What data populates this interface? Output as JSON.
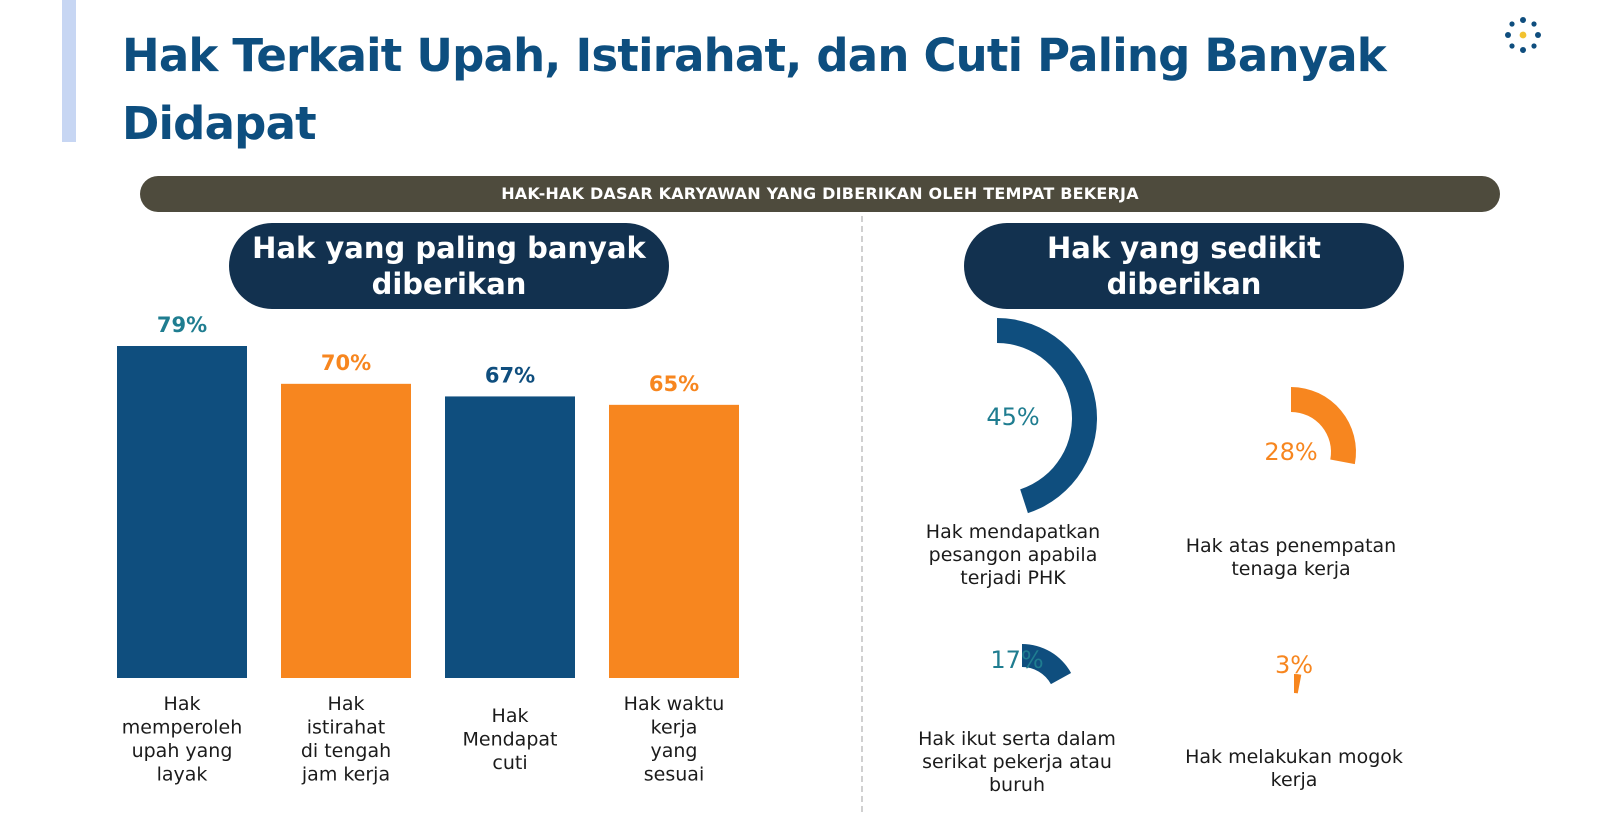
{
  "title": "Hak Terkait Upah, Istirahat, dan Cuti Paling Banyak Didapat",
  "banner": "HAK-HAK DASAR KARYAWAN YANG DIBERIKAN OLEH  TEMPAT BEKERJA",
  "left_header": "Hak yang paling banyak diberikan",
  "right_header": "Hak yang sedikit diberikan",
  "colors": {
    "blue": "#0f4e7e",
    "orange": "#f7861f",
    "teal": "#1f7d90",
    "title": "#0d4e7f",
    "banner": "#4e4b3d",
    "pill": "#12314f"
  },
  "chart_data": [
    {
      "type": "bar",
      "title": "Hak yang paling banyak diberikan",
      "categories": [
        [
          "Hak",
          "memperoleh",
          "upah yang",
          "layak"
        ],
        [
          "Hak",
          "istirahat",
          "di tengah",
          "jam kerja"
        ],
        [
          "Hak",
          "Mendapat",
          "cuti"
        ],
        [
          "Hak waktu",
          "kerja",
          "yang",
          "sesuai"
        ]
      ],
      "values": [
        79,
        70,
        67,
        65
      ],
      "value_labels": [
        "79%",
        "70%",
        "67%",
        "65%"
      ],
      "bar_colors": [
        "blue",
        "orange",
        "blue",
        "orange"
      ],
      "label_colors": [
        "teal",
        "orange",
        "blue",
        "orange"
      ],
      "ylim": [
        0,
        100
      ]
    },
    {
      "type": "pie",
      "title": "Hak yang sedikit diberikan",
      "items": [
        {
          "label": [
            "Hak mendapatkan",
            "pesangon apabila",
            "terjadi PHK"
          ],
          "value": 45,
          "value_label": "45%",
          "color": "blue",
          "label_color": "teal"
        },
        {
          "label": [
            "Hak atas penempatan",
            "tenaga kerja"
          ],
          "value": 28,
          "value_label": "28%",
          "color": "orange",
          "label_color": "orange"
        },
        {
          "label": [
            "Hak ikut serta dalam",
            "serikat pekerja atau",
            "buruh"
          ],
          "value": 17,
          "value_label": "17%",
          "color": "blue",
          "label_color": "teal"
        },
        {
          "label": [
            "Hak melakukan mogok",
            "kerja"
          ],
          "value": 3,
          "value_label": "3%",
          "color": "orange",
          "label_color": "orange"
        }
      ]
    }
  ]
}
